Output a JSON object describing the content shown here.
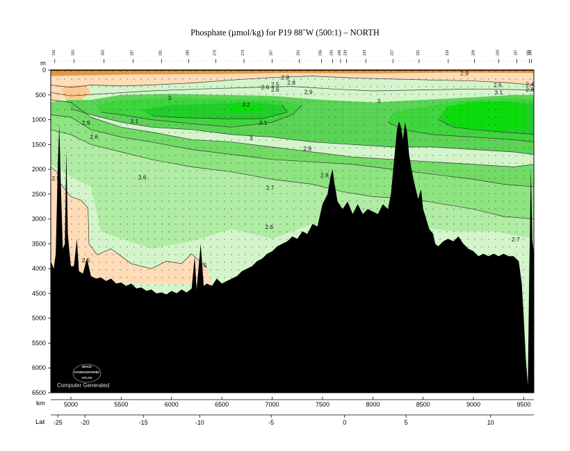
{
  "chart_data": {
    "type": "heatmap",
    "title": "Phosphate (µmol/kg) for P19 88˚W (500:1) – NORTH",
    "y_unit": "m",
    "x_unit": "km",
    "lat_label": "Lat",
    "ylim": [
      0,
      6500
    ],
    "xlim": [
      4800,
      9600
    ],
    "y_ticks": [
      0,
      500,
      1000,
      1500,
      2000,
      2500,
      3000,
      3500,
      4000,
      4500,
      5000,
      5500,
      6000,
      6500
    ],
    "x_ticks": [
      5000,
      5500,
      6000,
      6500,
      7000,
      7500,
      8000,
      8500,
      9000,
      9500
    ],
    "lat_ticks": [
      {
        "label": "-25",
        "km": 4870
      },
      {
        "label": "-20",
        "km": 5140
      },
      {
        "label": "-15",
        "km": 5720
      },
      {
        "label": "-10",
        "km": 6280
      },
      {
        "label": "-5",
        "km": 6990
      },
      {
        "label": "0",
        "km": 7720
      },
      {
        "label": "5",
        "km": 8330
      },
      {
        "label": "10",
        "km": 9170
      }
    ],
    "stations": [
      {
        "label": "316",
        "km": 4840
      },
      {
        "label": "310",
        "km": 5030
      },
      {
        "label": "303",
        "km": 5330
      },
      {
        "label": "297",
        "km": 5620
      },
      {
        "label": "291",
        "km": 5900
      },
      {
        "label": "285",
        "km": 6170
      },
      {
        "label": "279",
        "km": 6440
      },
      {
        "label": "273",
        "km": 6720
      },
      {
        "label": "267",
        "km": 7000
      },
      {
        "label": "261",
        "km": 7270
      },
      {
        "label": "255",
        "km": 7490
      },
      {
        "label": "250",
        "km": 7600
      },
      {
        "label": "245",
        "km": 7680
      },
      {
        "label": "239",
        "km": 7740
      },
      {
        "label": "233",
        "km": 7930
      },
      {
        "label": "227",
        "km": 8200
      },
      {
        "label": "221",
        "km": 8460
      },
      {
        "label": "215",
        "km": 8750
      },
      {
        "label": "209",
        "km": 9010
      },
      {
        "label": "203",
        "km": 9250
      },
      {
        "label": "197",
        "km": 9430
      },
      {
        "label": "191",
        "km": 9555
      },
      {
        "label": "185",
        "km": 9575
      }
    ],
    "contour_levels": [
      2.5,
      2.6,
      2.7,
      2.8,
      2.9,
      3.0,
      3.1,
      3.2
    ],
    "color_bands": [
      {
        "range": "< 2.5",
        "color": "#ffdcb8"
      },
      {
        "range": "2.5 - 2.6",
        "color": "#d4f5cc"
      },
      {
        "range": "2.6 - 2.7",
        "color": "#b0eca4"
      },
      {
        "range": "2.7 - 2.8",
        "color": "#8fe482"
      },
      {
        "range": "2.8 - 2.9",
        "color": "#72db66"
      },
      {
        "range": "2.9 - 3.0",
        "color": "#5bd356"
      },
      {
        "range": "3.0 - 3.1",
        "color": "#3fd53d"
      },
      {
        "range": "3.1 - 3.2",
        "color": "#22cc2a"
      },
      {
        "range": "> 3.2",
        "color": "#0bdc0b"
      }
    ],
    "contour_labels": [
      {
        "text": "2.5",
        "km": 4850,
        "depth": 2180
      },
      {
        "text": "2.5",
        "km": 5150,
        "depth": 3830
      },
      {
        "text": "2.5",
        "km": 6310,
        "depth": 3930
      },
      {
        "text": "2.6",
        "km": 5230,
        "depth": 1340
      },
      {
        "text": "2.6",
        "km": 5710,
        "depth": 2160
      },
      {
        "text": "2.6",
        "km": 6970,
        "depth": 3160
      },
      {
        "text": "2.6",
        "km": 6930,
        "depth": 340
      },
      {
        "text": "2.6",
        "km": 7030,
        "depth": 390
      },
      {
        "text": "2.6",
        "km": 9240,
        "depth": 300
      },
      {
        "text": "2.7",
        "km": 6980,
        "depth": 2370
      },
      {
        "text": "2.7",
        "km": 9420,
        "depth": 3410
      },
      {
        "text": "2.8",
        "km": 7520,
        "depth": 2120
      },
      {
        "text": "2.8",
        "km": 7130,
        "depth": 150
      },
      {
        "text": "2.8",
        "km": 7190,
        "depth": 250
      },
      {
        "text": "2.9",
        "km": 5150,
        "depth": 1060
      },
      {
        "text": "2.9",
        "km": 7350,
        "depth": 1580
      },
      {
        "text": "2.9",
        "km": 7360,
        "depth": 440
      },
      {
        "text": "3",
        "km": 5980,
        "depth": 560
      },
      {
        "text": "3",
        "km": 6790,
        "depth": 1370
      },
      {
        "text": "3",
        "km": 8060,
        "depth": 620
      },
      {
        "text": "3.1",
        "km": 5630,
        "depth": 1030
      },
      {
        "text": "3.1",
        "km": 6910,
        "depth": 1060
      },
      {
        "text": "3.1",
        "km": 9250,
        "depth": 450
      },
      {
        "text": "3.2",
        "km": 6740,
        "depth": 690
      },
      {
        "text": "2.4",
        "km": 9560,
        "depth": 290
      },
      {
        "text": "2.5",
        "km": 7030,
        "depth": 290
      },
      {
        "text": "2.8",
        "km": 9560,
        "depth": 390
      },
      {
        "text": "2.9",
        "km": 8910,
        "depth": 60
      }
    ],
    "bathymetry": [
      [
        4800,
        3850
      ],
      [
        4830,
        4000
      ],
      [
        4850,
        3700
      ],
      [
        4870,
        1950
      ],
      [
        4885,
        1100
      ],
      [
        4900,
        2300
      ],
      [
        4920,
        3600
      ],
      [
        4940,
        3500
      ],
      [
        4955,
        1600
      ],
      [
        4970,
        3300
      ],
      [
        4985,
        3650
      ],
      [
        5000,
        3950
      ],
      [
        5030,
        3950
      ],
      [
        5060,
        3400
      ],
      [
        5080,
        4050
      ],
      [
        5120,
        4100
      ],
      [
        5160,
        3800
      ],
      [
        5200,
        4150
      ],
      [
        5250,
        4200
      ],
      [
        5300,
        4180
      ],
      [
        5350,
        4250
      ],
      [
        5400,
        4200
      ],
      [
        5450,
        4300
      ],
      [
        5500,
        4280
      ],
      [
        5550,
        4350
      ],
      [
        5600,
        4300
      ],
      [
        5650,
        4400
      ],
      [
        5700,
        4380
      ],
      [
        5750,
        4450
      ],
      [
        5800,
        4420
      ],
      [
        5850,
        4500
      ],
      [
        5900,
        4480
      ],
      [
        5950,
        4520
      ],
      [
        6000,
        4450
      ],
      [
        6050,
        4500
      ],
      [
        6100,
        4420
      ],
      [
        6150,
        4480
      ],
      [
        6200,
        4400
      ],
      [
        6230,
        3750
      ],
      [
        6250,
        4420
      ],
      [
        6290,
        3500
      ],
      [
        6320,
        4350
      ],
      [
        6350,
        4300
      ],
      [
        6400,
        4350
      ],
      [
        6450,
        4200
      ],
      [
        6500,
        4300
      ],
      [
        6550,
        4250
      ],
      [
        6600,
        4200
      ],
      [
        6650,
        4150
      ],
      [
        6700,
        4050
      ],
      [
        6750,
        4000
      ],
      [
        6800,
        3950
      ],
      [
        6850,
        3850
      ],
      [
        6900,
        3800
      ],
      [
        6950,
        3700
      ],
      [
        7000,
        3650
      ],
      [
        7050,
        3550
      ],
      [
        7100,
        3500
      ],
      [
        7150,
        3450
      ],
      [
        7200,
        3350
      ],
      [
        7250,
        3400
      ],
      [
        7300,
        3250
      ],
      [
        7350,
        3300
      ],
      [
        7400,
        3100
      ],
      [
        7450,
        3150
      ],
      [
        7500,
        2700
      ],
      [
        7550,
        2500
      ],
      [
        7580,
        2150
      ],
      [
        7600,
        1990
      ],
      [
        7620,
        2300
      ],
      [
        7650,
        2650
      ],
      [
        7700,
        2800
      ],
      [
        7750,
        2650
      ],
      [
        7800,
        2900
      ],
      [
        7850,
        2700
      ],
      [
        7900,
        2900
      ],
      [
        7950,
        2800
      ],
      [
        8000,
        2850
      ],
      [
        8050,
        2900
      ],
      [
        8100,
        2700
      ],
      [
        8150,
        2800
      ],
      [
        8180,
        2500
      ],
      [
        8210,
        1850
      ],
      [
        8240,
        1200
      ],
      [
        8260,
        1030
      ],
      [
        8280,
        1150
      ],
      [
        8300,
        1400
      ],
      [
        8320,
        1050
      ],
      [
        8340,
        1250
      ],
      [
        8360,
        1700
      ],
      [
        8380,
        1950
      ],
      [
        8410,
        2250
      ],
      [
        8450,
        2600
      ],
      [
        8480,
        2400
      ],
      [
        8500,
        2800
      ],
      [
        8530,
        3000
      ],
      [
        8560,
        3200
      ],
      [
        8600,
        3300
      ],
      [
        8620,
        3500
      ],
      [
        8650,
        3550
      ],
      [
        8700,
        3450
      ],
      [
        8750,
        3400
      ],
      [
        8800,
        3450
      ],
      [
        8850,
        3350
      ],
      [
        8900,
        3500
      ],
      [
        8950,
        3600
      ],
      [
        9000,
        3650
      ],
      [
        9050,
        3750
      ],
      [
        9100,
        3700
      ],
      [
        9150,
        3750
      ],
      [
        9200,
        3700
      ],
      [
        9250,
        3750
      ],
      [
        9300,
        3700
      ],
      [
        9350,
        3750
      ],
      [
        9400,
        3750
      ],
      [
        9450,
        3850
      ],
      [
        9480,
        4300
      ],
      [
        9500,
        5000
      ],
      [
        9520,
        5800
      ],
      [
        9540,
        6350
      ],
      [
        9555,
        4000
      ],
      [
        9570,
        2000
      ],
      [
        9585,
        3400
      ],
      [
        9600,
        3700
      ]
    ],
    "credit_logo_lines": [
      "WOCE",
      "HYDROGRAPHIC",
      "ATLAS"
    ],
    "credit_text": "Computer Generated"
  }
}
